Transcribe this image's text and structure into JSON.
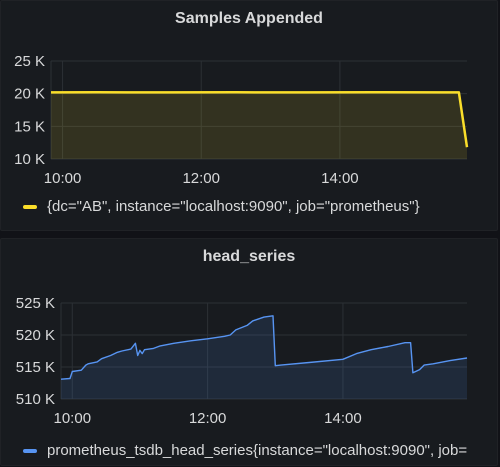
{
  "chart_data": [
    {
      "type": "area",
      "title": "Samples Appended",
      "xlabel": "",
      "ylabel": "",
      "x_ticks": [
        "10:00",
        "12:00",
        "14:00"
      ],
      "y_ticks": [
        "10 K",
        "15 K",
        "20 K",
        "25 K"
      ],
      "ylim": [
        10000,
        25000
      ],
      "xlim": [
        "09:50",
        "15:50"
      ],
      "grid": true,
      "legend": "bottom",
      "series": [
        {
          "name": "{dc=\"AB\", instance=\"localhost:9090\", job=\"prometheus\"}",
          "color": "#fade2a",
          "x": [
            "09:50",
            "10:30",
            "11:30",
            "12:30",
            "13:30",
            "14:30",
            "15:30",
            "15:43",
            "15:50"
          ],
          "values": [
            20200,
            20210,
            20200,
            20210,
            20200,
            20210,
            20200,
            20200,
            11800
          ]
        }
      ]
    },
    {
      "type": "area",
      "title": "head_series",
      "xlabel": "",
      "ylabel": "",
      "x_ticks": [
        "10:00",
        "12:00",
        "14:00"
      ],
      "y_ticks": [
        "510 K",
        "515 K",
        "520 K",
        "525 K"
      ],
      "ylim": [
        510000,
        525000
      ],
      "xlim": [
        "09:50",
        "15:50"
      ],
      "grid": true,
      "legend": "bottom",
      "series": [
        {
          "name": "prometheus_tsdb_head_series{instance=\"localhost:9090\", job=",
          "color": "#5794f2",
          "x": [
            "09:50",
            "09:58",
            "10:00",
            "10:08",
            "10:12",
            "10:14",
            "10:22",
            "10:26",
            "10:34",
            "10:40",
            "10:44",
            "10:52",
            "10:56",
            "10:58",
            "11:00",
            "11:02",
            "11:04",
            "11:12",
            "11:18",
            "11:30",
            "11:45",
            "12:00",
            "12:15",
            "12:20",
            "12:25",
            "12:35",
            "12:40",
            "12:50",
            "12:58",
            "13:00",
            "13:05",
            "13:30",
            "14:00",
            "14:12",
            "14:25",
            "14:40",
            "14:55",
            "15:00",
            "15:02",
            "15:08",
            "15:12",
            "15:20",
            "15:35",
            "15:50"
          ],
          "values": [
            513100,
            513200,
            514300,
            514500,
            515300,
            515500,
            515800,
            516300,
            516800,
            517300,
            517500,
            517800,
            518700,
            516800,
            517600,
            517100,
            517700,
            517900,
            518300,
            518700,
            519100,
            519400,
            519800,
            520000,
            520800,
            521500,
            522200,
            522800,
            523000,
            515200,
            515300,
            515700,
            516200,
            517100,
            517700,
            518200,
            518800,
            518800,
            514100,
            514600,
            515300,
            515500,
            516000,
            516400
          ]
        }
      ]
    }
  ]
}
